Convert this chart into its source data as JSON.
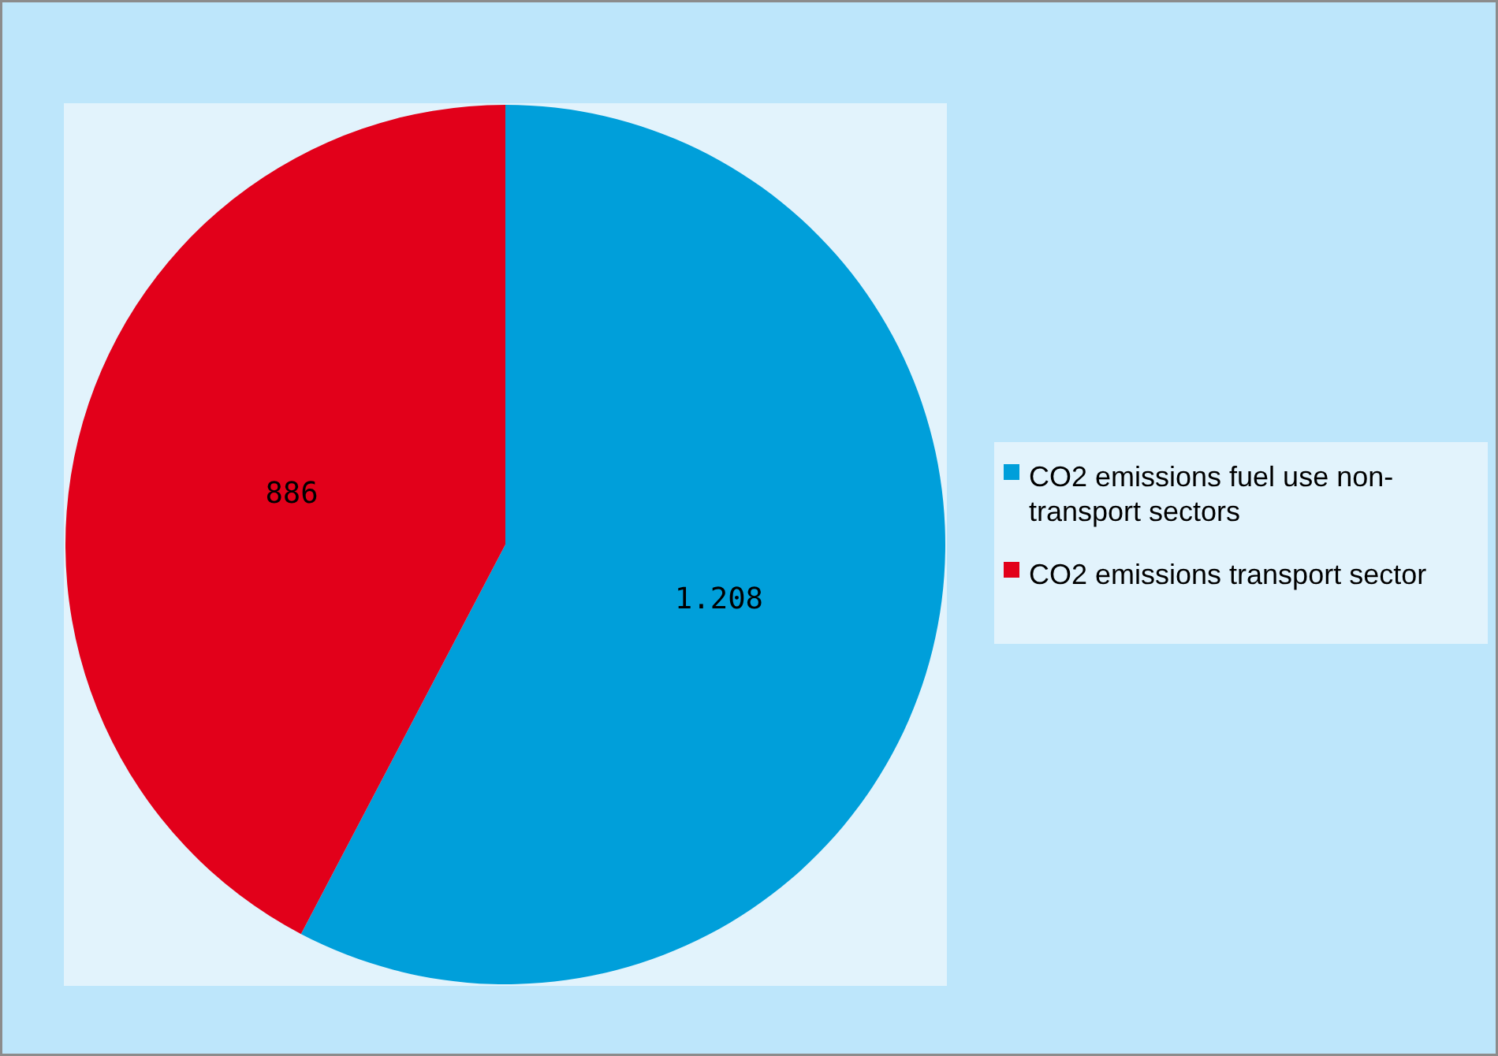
{
  "chart_data": {
    "type": "pie",
    "categories": [
      "CO2 emissions fuel use non-transport sectors",
      "CO2 emissions transport sector"
    ],
    "values": [
      1208,
      886
    ],
    "value_labels": [
      "1.208",
      "886"
    ],
    "colors": [
      "#009fda",
      "#e2001a"
    ],
    "legend": "right"
  }
}
